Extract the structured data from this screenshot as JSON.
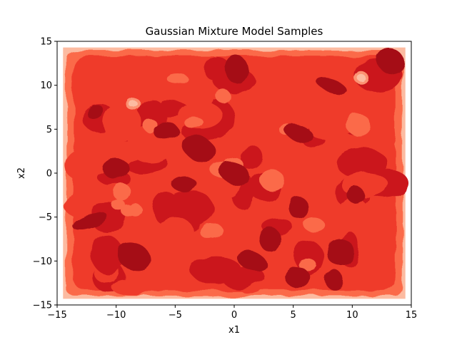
{
  "chart_data": {
    "type": "heatmap",
    "subtype": "filled-contour",
    "title": "Gaussian Mixture Model Samples",
    "xlabel": "x1",
    "ylabel": "x2",
    "xlim": [
      -15,
      15
    ],
    "ylim": [
      -15,
      15
    ],
    "xticks": [
      -15,
      -10,
      -5,
      0,
      5,
      10,
      15
    ],
    "yticks": [
      -15,
      -10,
      -5,
      0,
      5,
      10,
      15
    ],
    "xtick_labels": [
      "−15",
      "−10",
      "−5",
      "0",
      "5",
      "10",
      "15"
    ],
    "ytick_labels": [
      "−15",
      "−10",
      "−5",
      "0",
      "5",
      "10",
      "15"
    ],
    "grid": false,
    "legend": "none",
    "colormap": "Reds",
    "levels": [
      "#fcbba1",
      "#fc9272",
      "#fb6a4a",
      "#ef3b2c",
      "#cb181d",
      "#a50f15"
    ],
    "density_region": {
      "x": [
        -14.5,
        14.5
      ],
      "y": [
        -14.3,
        14.3
      ]
    },
    "high_density_blobs": [
      {
        "x": -11.8,
        "y": 7.0
      },
      {
        "x": -10.0,
        "y": 0.5
      },
      {
        "x": -8.5,
        "y": -9.5
      },
      {
        "x": -5.8,
        "y": 4.8
      },
      {
        "x": -3.0,
        "y": 2.8
      },
      {
        "x": -4.2,
        "y": -1.3
      },
      {
        "x": 0.0,
        "y": 0.0
      },
      {
        "x": 0.2,
        "y": 11.8
      },
      {
        "x": 1.5,
        "y": -10.0
      },
      {
        "x": 3.0,
        "y": -7.5
      },
      {
        "x": 5.5,
        "y": 4.5
      },
      {
        "x": 5.5,
        "y": -4.0
      },
      {
        "x": 8.2,
        "y": 10.0
      },
      {
        "x": 8.5,
        "y": -12.2
      },
      {
        "x": 9.0,
        "y": -9.0
      },
      {
        "x": 10.3,
        "y": -2.5
      },
      {
        "x": 13.2,
        "y": 12.8
      },
      {
        "x": -12.2,
        "y": -5.5
      },
      {
        "x": 5.3,
        "y": -11.8
      }
    ],
    "low_density_spots": [
      {
        "x": -8.5,
        "y": 7.8
      },
      {
        "x": 10.8,
        "y": 10.8
      },
      {
        "x": 3.2,
        "y": -0.8
      },
      {
        "x": 10.5,
        "y": 5.5
      }
    ]
  }
}
